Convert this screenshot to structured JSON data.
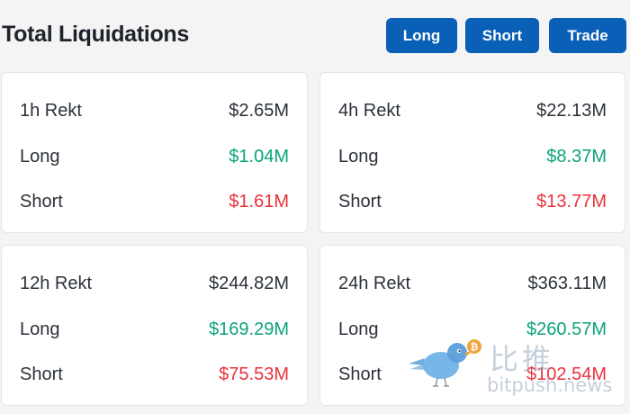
{
  "header": {
    "title": "Total Liquidations",
    "buttons": {
      "long": "Long",
      "short": "Short",
      "trade": "Trade"
    }
  },
  "cards": [
    {
      "period_label": "1h Rekt",
      "total": "$2.65M",
      "long_label": "Long",
      "long_value": "$1.04M",
      "short_label": "Short",
      "short_value": "$1.61M"
    },
    {
      "period_label": "4h Rekt",
      "total": "$22.13M",
      "long_label": "Long",
      "long_value": "$8.37M",
      "short_label": "Short",
      "short_value": "$13.77M"
    },
    {
      "period_label": "12h Rekt",
      "total": "$244.82M",
      "long_label": "Long",
      "long_value": "$169.29M",
      "short_label": "Short",
      "short_value": "$75.53M"
    },
    {
      "period_label": "24h Rekt",
      "total": "$363.11M",
      "long_label": "Long",
      "long_value": "$260.57M",
      "short_label": "Short",
      "short_value": "$102.54M"
    }
  ],
  "watermark": {
    "cn": "比推",
    "en": "bitpush.news",
    "icon": "bird-bitcoin-logo-icon"
  },
  "colors": {
    "button_bg": "#0a5fb6",
    "long_green": "#0ba37a",
    "short_red": "#e8323c",
    "text_dark": "#2b3139"
  }
}
